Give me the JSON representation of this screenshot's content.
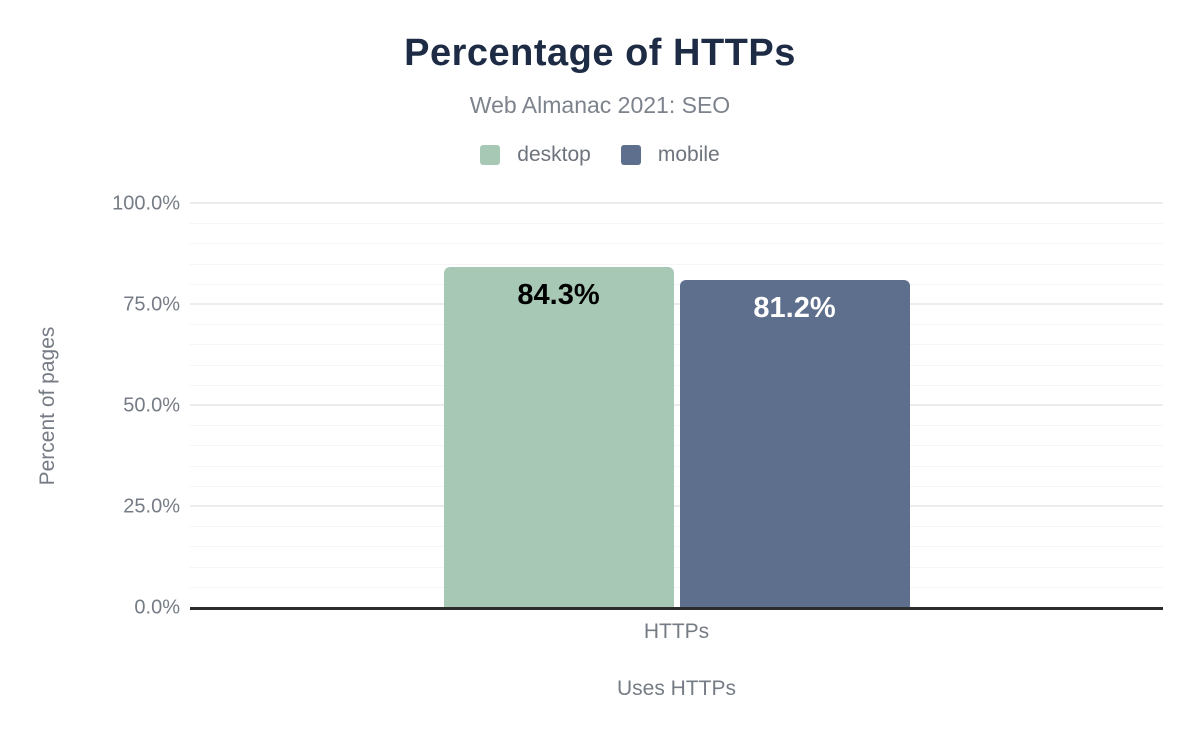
{
  "chart": {
    "title": "Percentage of HTTPs",
    "subtitle": "Web Almanac 2021: SEO",
    "y_axis": {
      "title": "Percent of pages",
      "ticks": [
        "0.0%",
        "25.0%",
        "50.0%",
        "75.0%",
        "100.0%"
      ]
    },
    "x_axis": {
      "category_label": "HTTPs",
      "title": "Uses HTTPs"
    }
  },
  "chart_data": {
    "type": "bar",
    "title": "Percentage of HTTPs",
    "subtitle": "Web Almanac 2021: SEO",
    "categories": [
      "HTTPs"
    ],
    "series": [
      {
        "name": "desktop",
        "values": [
          84.3
        ],
        "color": "#a6c8b5",
        "value_label": "84.3%",
        "value_label_color": "#000000"
      },
      {
        "name": "mobile",
        "values": [
          81.2
        ],
        "color": "#5e6f8d",
        "value_label": "81.2%",
        "value_label_color": "#ffffff"
      }
    ],
    "xlabel": "Uses HTTPs",
    "ylabel": "Percent of pages",
    "ylim": [
      0,
      100
    ],
    "y_major_tick_step": 25,
    "y_minor_tick_step": 5,
    "y_tick_labels": [
      "0.0%",
      "25.0%",
      "50.0%",
      "75.0%",
      "100.0%"
    ],
    "legend_position": "top",
    "grid": true
  },
  "colors": {
    "background": "#ffffff",
    "title_text": "#1e2b45",
    "secondary_text": "#7d838c",
    "axis_text": "#767c85",
    "legend_text": "#6e747d",
    "baseline": "#2d2d2d",
    "grid_major": "#ececec",
    "grid_minor": "#f5f5f5"
  }
}
